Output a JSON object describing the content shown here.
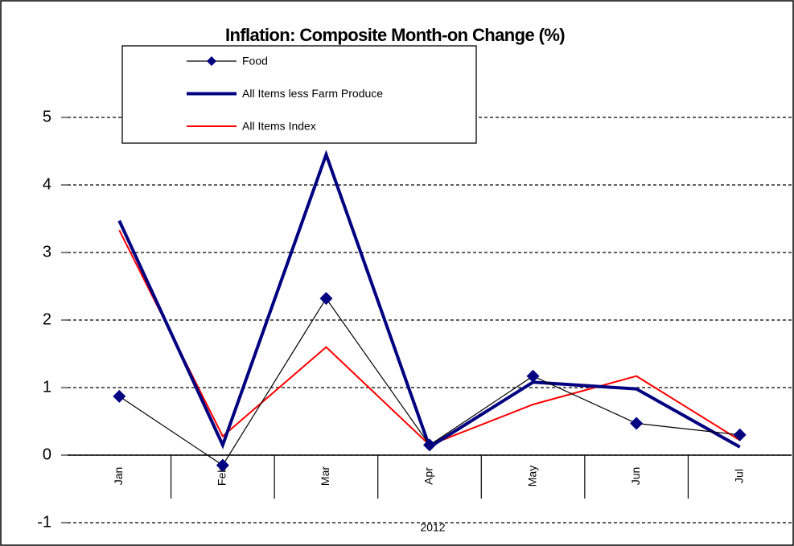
{
  "chart_data": {
    "type": "line",
    "title": "Inflation: Composite Month-on Change (%)",
    "categories": [
      "Jan",
      "Feb",
      "Mar",
      "Apr",
      "May",
      "Jun",
      "Jul"
    ],
    "group_label": "2012",
    "series": [
      {
        "name": "Food",
        "color": "#000000",
        "marker": "diamond",
        "marker_color": "#000080",
        "line_width": 1.2,
        "values": [
          0.87,
          -0.15,
          2.32,
          0.15,
          1.17,
          0.47,
          0.3
        ]
      },
      {
        "name": "All Items less Farm Produce",
        "color": "#000080",
        "line_width": 4,
        "values": [
          3.47,
          0.15,
          4.45,
          0.12,
          1.08,
          0.98,
          0.12
        ]
      },
      {
        "name": "All Items Index",
        "color": "#ff0000",
        "line_width": 2,
        "values": [
          3.33,
          0.28,
          1.6,
          0.15,
          0.75,
          1.17,
          0.22
        ]
      }
    ],
    "ylim": [
      -1,
      5
    ],
    "yticks": [
      -1,
      0,
      1,
      2,
      3,
      4,
      5
    ],
    "grid": true
  }
}
